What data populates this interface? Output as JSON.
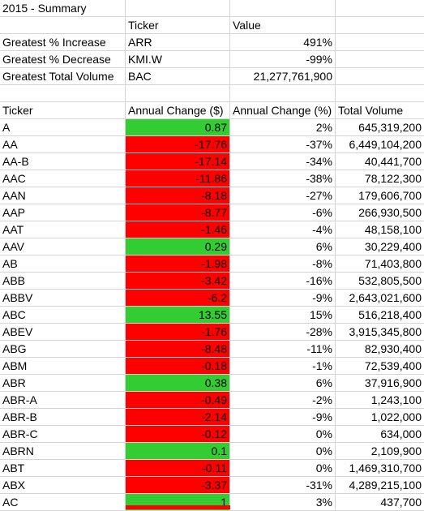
{
  "summary": {
    "title": "2015 - Summary",
    "headers": {
      "ticker": "Ticker",
      "value": "Value"
    },
    "rows": [
      {
        "label": "Greatest % Increase",
        "ticker": "ARR",
        "value": "491%"
      },
      {
        "label": "Greatest % Decrease",
        "ticker": "KMI.W",
        "value": "-99%"
      },
      {
        "label": "Greatest Total Volume",
        "ticker": "BAC",
        "value": "21,277,761,900"
      }
    ]
  },
  "table": {
    "headers": [
      "Ticker",
      "Annual Change ($)",
      "Annual Change (%)",
      "Total Volume"
    ],
    "rows": [
      {
        "ticker": "A",
        "change": "0.87",
        "pct": "2%",
        "volume": "645,319,200"
      },
      {
        "ticker": "AA",
        "change": "-17.76",
        "pct": "-37%",
        "volume": "6,449,104,200"
      },
      {
        "ticker": "AA-B",
        "change": "-17.14",
        "pct": "-34%",
        "volume": "40,441,700"
      },
      {
        "ticker": "AAC",
        "change": "-11.86",
        "pct": "-38%",
        "volume": "78,122,300"
      },
      {
        "ticker": "AAN",
        "change": "-8.18",
        "pct": "-27%",
        "volume": "179,606,700"
      },
      {
        "ticker": "AAP",
        "change": "-8.77",
        "pct": "-6%",
        "volume": "266,930,500"
      },
      {
        "ticker": "AAT",
        "change": "-1.46",
        "pct": "-4%",
        "volume": "48,158,100"
      },
      {
        "ticker": "AAV",
        "change": "0.29",
        "pct": "6%",
        "volume": "30,229,400"
      },
      {
        "ticker": "AB",
        "change": "-1.98",
        "pct": "-8%",
        "volume": "71,403,800"
      },
      {
        "ticker": "ABB",
        "change": "-3.42",
        "pct": "-16%",
        "volume": "532,805,500"
      },
      {
        "ticker": "ABBV",
        "change": "-6.2",
        "pct": "-9%",
        "volume": "2,643,021,600"
      },
      {
        "ticker": "ABC",
        "change": "13.55",
        "pct": "15%",
        "volume": "516,218,400"
      },
      {
        "ticker": "ABEV",
        "change": "-1.76",
        "pct": "-28%",
        "volume": "3,915,345,800"
      },
      {
        "ticker": "ABG",
        "change": "-8.48",
        "pct": "-11%",
        "volume": "82,930,400"
      },
      {
        "ticker": "ABM",
        "change": "-0.18",
        "pct": "-1%",
        "volume": "72,539,400"
      },
      {
        "ticker": "ABR",
        "change": "0.38",
        "pct": "6%",
        "volume": "37,916,900"
      },
      {
        "ticker": "ABR-A",
        "change": "-0.49",
        "pct": "-2%",
        "volume": "1,243,100"
      },
      {
        "ticker": "ABR-B",
        "change": "-2.14",
        "pct": "-9%",
        "volume": "1,022,000"
      },
      {
        "ticker": "ABR-C",
        "change": "-0.12",
        "pct": "0%",
        "volume": "634,000"
      },
      {
        "ticker": "ABRN",
        "change": "0.1",
        "pct": "0%",
        "volume": "2,109,900"
      },
      {
        "ticker": "ABT",
        "change": "-0.11",
        "pct": "0%",
        "volume": "1,469,310,700"
      },
      {
        "ticker": "ABX",
        "change": "-3.37",
        "pct": "-31%",
        "volume": "4,289,215,100"
      },
      {
        "ticker": "AC",
        "change": "1",
        "pct": "3%",
        "volume": "437,700"
      }
    ]
  },
  "colors": {
    "positive": "#33cc33",
    "negative": "#ff0000",
    "gridline": "#d4d4d4"
  }
}
